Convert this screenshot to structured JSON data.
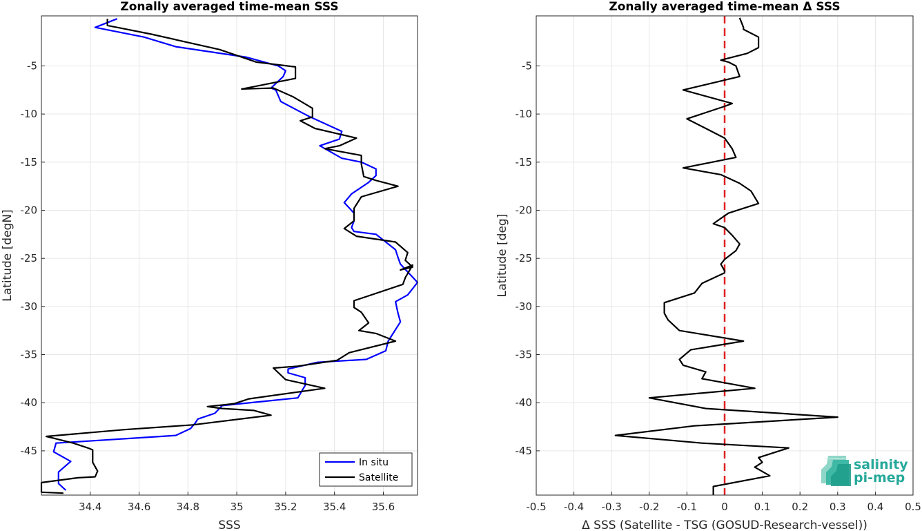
{
  "chart_data": [
    {
      "type": "line",
      "title": "Zonally averaged time-mean SSS",
      "xlabel": "SSS",
      "ylabel": "Latitude [degN]",
      "xlim": [
        34.2,
        35.74
      ],
      "ylim": [
        -49.6,
        0.2
      ],
      "xticks": [
        "34.4",
        "34.6",
        "34.8",
        "35",
        "35.2",
        "35.4",
        "35.6"
      ],
      "yticks": [
        "-5",
        "-10",
        "-15",
        "-20",
        "-25",
        "-30",
        "-35",
        "-40",
        "-45"
      ],
      "grid": true,
      "legend": "bottom-right",
      "series": [
        {
          "name": "In situ",
          "color": "#0000ff",
          "points": [
            [
              34.51,
              -0.1
            ],
            [
              34.42,
              -1
            ],
            [
              34.62,
              -2
            ],
            [
              34.75,
              -3
            ],
            [
              35.04,
              -4.1
            ],
            [
              35.17,
              -5
            ],
            [
              35.2,
              -5.5
            ],
            [
              35.19,
              -6.1
            ],
            [
              35.14,
              -7.3
            ],
            [
              35.16,
              -7.5
            ],
            [
              35.18,
              -8.7
            ],
            [
              35.27,
              -9.9
            ],
            [
              35.3,
              -10.3
            ],
            [
              35.43,
              -11.8
            ],
            [
              35.42,
              -12.6
            ],
            [
              35.34,
              -13.3
            ],
            [
              35.43,
              -14.6
            ],
            [
              35.51,
              -15
            ],
            [
              35.57,
              -15.7
            ],
            [
              35.57,
              -16.4
            ],
            [
              35.54,
              -17.1
            ],
            [
              35.47,
              -18.3
            ],
            [
              35.44,
              -19.2
            ],
            [
              35.48,
              -20.3
            ],
            [
              35.48,
              -21.1
            ],
            [
              35.47,
              -21.8
            ],
            [
              35.48,
              -22.2
            ],
            [
              35.57,
              -22.5
            ],
            [
              35.61,
              -23.3
            ],
            [
              35.65,
              -24.1
            ],
            [
              35.66,
              -24.9
            ],
            [
              35.67,
              -25.6
            ],
            [
              35.7,
              -26.4
            ],
            [
              35.74,
              -27.5
            ],
            [
              35.7,
              -28.8
            ],
            [
              35.65,
              -29.5
            ],
            [
              35.66,
              -30.7
            ],
            [
              35.67,
              -31.6
            ],
            [
              35.62,
              -33.6
            ],
            [
              35.61,
              -34.6
            ],
            [
              35.53,
              -35.5
            ],
            [
              35.33,
              -35.8
            ],
            [
              35.21,
              -36.5
            ],
            [
              35.21,
              -36.9
            ],
            [
              35.28,
              -37.4
            ],
            [
              35.28,
              -38.2
            ],
            [
              35.25,
              -39.5
            ],
            [
              34.94,
              -40.3
            ],
            [
              34.91,
              -41.1
            ],
            [
              34.84,
              -41.7
            ],
            [
              34.83,
              -42.1
            ],
            [
              34.81,
              -42.7
            ],
            [
              34.75,
              -43.4
            ],
            [
              34.63,
              -43.6
            ],
            [
              34.26,
              -44.2
            ],
            [
              34.25,
              -45.1
            ],
            [
              34.32,
              -46.1
            ],
            [
              34.27,
              -47.2
            ],
            [
              34.27,
              -48.4
            ],
            [
              34.3,
              -49.1
            ]
          ]
        },
        {
          "name": "Satellite",
          "color": "#000000",
          "points": [
            [
              34.47,
              -0.1
            ],
            [
              34.47,
              -0.8
            ],
            [
              34.53,
              -1.1
            ],
            [
              34.65,
              -1.7
            ],
            [
              34.93,
              -3.3
            ],
            [
              35.08,
              -4.6
            ],
            [
              35.24,
              -5.1
            ],
            [
              35.24,
              -6.3
            ],
            [
              35.14,
              -6.8
            ],
            [
              35.02,
              -7.4
            ],
            [
              35.15,
              -7.3
            ],
            [
              35.23,
              -8.2
            ],
            [
              35.31,
              -9.4
            ],
            [
              35.31,
              -10.3
            ],
            [
              35.26,
              -10.7
            ],
            [
              35.32,
              -11.5
            ],
            [
              35.49,
              -12.5
            ],
            [
              35.42,
              -13.3
            ],
            [
              35.36,
              -13.6
            ],
            [
              35.51,
              -14.3
            ],
            [
              35.51,
              -15.2
            ],
            [
              35.52,
              -16.5
            ],
            [
              35.57,
              -16.9
            ],
            [
              35.66,
              -17.5
            ],
            [
              35.51,
              -18.6
            ],
            [
              35.48,
              -19.8
            ],
            [
              35.48,
              -21.1
            ],
            [
              35.44,
              -21.9
            ],
            [
              35.49,
              -22.7
            ],
            [
              35.65,
              -23.3
            ],
            [
              35.7,
              -24.4
            ],
            [
              35.69,
              -25.2
            ],
            [
              35.72,
              -25.9
            ],
            [
              35.67,
              -26.2
            ],
            [
              35.72,
              -25.7
            ],
            [
              35.69,
              -27
            ],
            [
              35.68,
              -27.7
            ],
            [
              35.48,
              -29.4
            ],
            [
              35.48,
              -30.1
            ],
            [
              35.51,
              -30.6
            ],
            [
              35.54,
              -31.7
            ],
            [
              35.5,
              -32.5
            ],
            [
              35.57,
              -32.8
            ],
            [
              35.65,
              -33.6
            ],
            [
              35.46,
              -34.8
            ],
            [
              35.41,
              -35.6
            ],
            [
              35.25,
              -36.2
            ],
            [
              35.15,
              -36.4
            ],
            [
              35.2,
              -37.6
            ],
            [
              35.36,
              -38.5
            ],
            [
              35.05,
              -39.6
            ],
            [
              34.99,
              -40.1
            ],
            [
              34.88,
              -40.4
            ],
            [
              34.94,
              -40.6
            ],
            [
              35.07,
              -40.8
            ],
            [
              35.14,
              -41.3
            ],
            [
              34.82,
              -42.3
            ],
            [
              34.54,
              -42.8
            ],
            [
              34.22,
              -43.5
            ],
            [
              34.33,
              -44.2
            ],
            [
              34.39,
              -44.7
            ],
            [
              34.41,
              -44.9
            ],
            [
              34.41,
              -46.2
            ],
            [
              34.43,
              -47.1
            ],
            [
              34.42,
              -47.7
            ],
            [
              34.35,
              -47.8
            ],
            [
              34.2,
              -48.3
            ],
            [
              34.2,
              -49.3
            ],
            [
              34.29,
              -49.4
            ]
          ]
        }
      ]
    },
    {
      "type": "line",
      "title": "Zonally averaged time-mean Δ SSS",
      "xlabel": "Δ SSS (Satellite - TSG (GOSUD-Research-vessel))",
      "ylabel": "Latitude [deg]",
      "xlim": [
        -0.5,
        0.5
      ],
      "ylim": [
        -49.6,
        0.2
      ],
      "xticks": [
        "-0.5",
        "-0.4",
        "-0.3",
        "-0.2",
        "-0.1",
        "0",
        "0.1",
        "0.2",
        "0.3",
        "0.4",
        "0.5"
      ],
      "yticks": [
        "-5",
        "-10",
        "-15",
        "-20",
        "-25",
        "-30",
        "-35",
        "-40",
        "-45"
      ],
      "grid": true,
      "reference_line": {
        "x": 0,
        "color": "#e02020",
        "style": "dashed"
      },
      "series": [
        {
          "color": "#000000",
          "points": [
            [
              0.04,
              0
            ],
            [
              0.05,
              -1
            ],
            [
              0.05,
              -1.2
            ],
            [
              0.09,
              -2
            ],
            [
              0.09,
              -3.1
            ],
            [
              0.06,
              -3.7
            ],
            [
              -0.01,
              -4.4
            ],
            [
              0.01,
              -4.6
            ],
            [
              0.03,
              -5
            ],
            [
              0.04,
              -6.1
            ],
            [
              -0.11,
              -7.5
            ],
            [
              0.02,
              -8.9
            ],
            [
              0,
              -9.2
            ],
            [
              -0.1,
              -10.5
            ],
            [
              -0.05,
              -11.5
            ],
            [
              0,
              -12.5
            ],
            [
              0.02,
              -13.6
            ],
            [
              0.03,
              -14.5
            ],
            [
              -0.11,
              -15.6
            ],
            [
              -0.01,
              -16.3
            ],
            [
              0.04,
              -17.2
            ],
            [
              0.07,
              -18
            ],
            [
              0.09,
              -19.3
            ],
            [
              0.01,
              -20.3
            ],
            [
              -0.03,
              -21.4
            ],
            [
              0,
              -21.8
            ],
            [
              0.02,
              -22.6
            ],
            [
              0.04,
              -23.5
            ],
            [
              0.03,
              -24.2
            ],
            [
              0,
              -25.1
            ],
            [
              -0.01,
              -25.6
            ],
            [
              0,
              -26.3
            ],
            [
              0,
              -26.5
            ],
            [
              -0.06,
              -27.6
            ],
            [
              -0.08,
              -28.6
            ],
            [
              -0.16,
              -29.6
            ],
            [
              -0.16,
              -30.7
            ],
            [
              -0.15,
              -31.4
            ],
            [
              -0.12,
              -32.5
            ],
            [
              0.05,
              -33.6
            ],
            [
              -0.09,
              -34.5
            ],
            [
              -0.12,
              -35.5
            ],
            [
              -0.11,
              -36.1
            ],
            [
              -0.05,
              -36.8
            ],
            [
              -0.06,
              -37.5
            ],
            [
              0.08,
              -38.5
            ],
            [
              -0.2,
              -39.5
            ],
            [
              -0.05,
              -40.6
            ],
            [
              0.3,
              -41.5
            ],
            [
              -0.08,
              -42.4
            ],
            [
              -0.29,
              -43.4
            ],
            [
              -0.06,
              -44.2
            ],
            [
              0.17,
              -44.7
            ],
            [
              0.09,
              -45.7
            ],
            [
              0.1,
              -46.2
            ],
            [
              0.08,
              -46.7
            ],
            [
              0.12,
              -47.6
            ],
            [
              -0.03,
              -48.7
            ],
            [
              -0.03,
              -49.6
            ]
          ]
        }
      ]
    }
  ],
  "legend": {
    "in_situ_label": "In situ",
    "satellite_label": "Satellite"
  },
  "logo": {
    "line1": "salinity",
    "line2": "pi-mep"
  }
}
